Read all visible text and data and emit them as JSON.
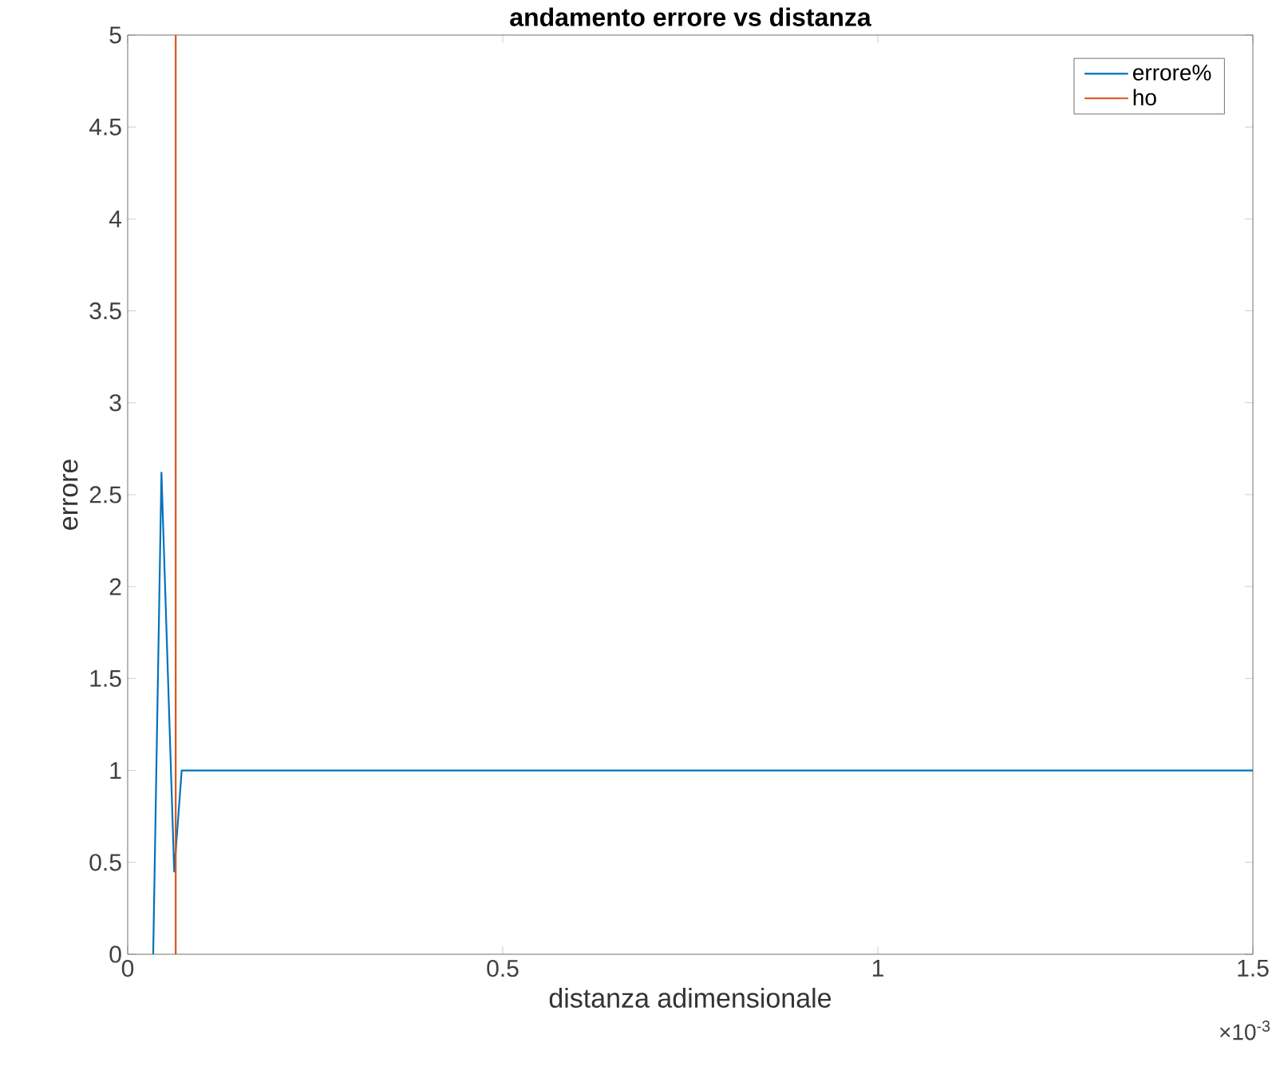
{
  "chart_data": {
    "type": "line",
    "title": "andamento errore vs distanza",
    "xlabel": "distanza adimensionale",
    "ylabel": "errore",
    "series": [
      {
        "name": "errore%",
        "color": "#0072bd",
        "x": [
          0.034,
          0.045,
          0.062,
          0.072,
          1.5
        ],
        "values": [
          0,
          2.62,
          0.45,
          1,
          1
        ]
      },
      {
        "name": "ho",
        "color": "#d95319",
        "x": [
          0.064,
          0.064
        ],
        "values": [
          0,
          5
        ]
      }
    ],
    "xlim": [
      0,
      1.5
    ],
    "ylim": [
      0,
      5
    ],
    "xticks": [
      0,
      0.5,
      1,
      1.5
    ],
    "yticks": [
      0,
      0.5,
      1,
      1.5,
      2,
      2.5,
      3,
      3.5,
      4,
      4.5,
      5
    ],
    "annotations": [
      "×10$^{-3}$"
    ],
    "grid": false,
    "legend": "top right",
    "marker": "none",
    "line_style": "solid"
  }
}
